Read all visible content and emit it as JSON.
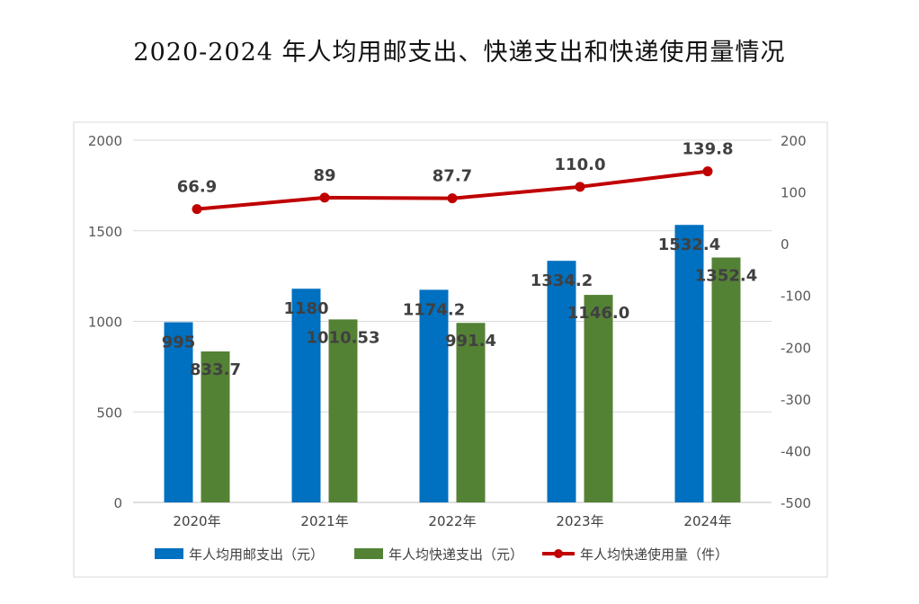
{
  "title": "2020-2024 年人均用邮支出、快递支出和快递使用量情况",
  "chart_data": {
    "type": "bar",
    "title": "2020-2024 年人均用邮支出、快递支出和快递使用量情况",
    "categories": [
      "2020年",
      "2021年",
      "2022年",
      "2023年",
      "2024年"
    ],
    "series": [
      {
        "name": "年人均用邮支出（元）",
        "type": "bar",
        "axis": "left",
        "color": "#0070c0",
        "values": [
          995,
          1180,
          1174.2,
          1334.2,
          1532.4
        ],
        "labels": [
          "995",
          "1180",
          "1174.2",
          "1334.2",
          "1532.4"
        ]
      },
      {
        "name": "年人均快递支出（元）",
        "type": "bar",
        "axis": "left",
        "color": "#548235",
        "values": [
          833.7,
          1010.53,
          991.4,
          1146.0,
          1352.4
        ],
        "labels": [
          "833.7",
          "1010.53",
          "991.4",
          "1146.0",
          "1352.4"
        ]
      },
      {
        "name": "年人均快递使用量（件）",
        "type": "line",
        "axis": "right",
        "color": "#c00000",
        "values": [
          66.9,
          89,
          87.7,
          110.0,
          139.8
        ],
        "labels": [
          "66.9",
          "89",
          "87.7",
          "110.0",
          "139.8"
        ]
      }
    ],
    "y_left": {
      "min": 0,
      "max": 2000,
      "step": 500,
      "ticks": [
        "0",
        "500",
        "1000",
        "1500",
        "2000"
      ]
    },
    "y_right": {
      "min": -500,
      "max": 200,
      "step": 100,
      "ticks": [
        "-500",
        "-400",
        "-300",
        "-200",
        "-100",
        "0",
        "100",
        "200"
      ]
    },
    "grid": true,
    "legend_position": "bottom"
  }
}
